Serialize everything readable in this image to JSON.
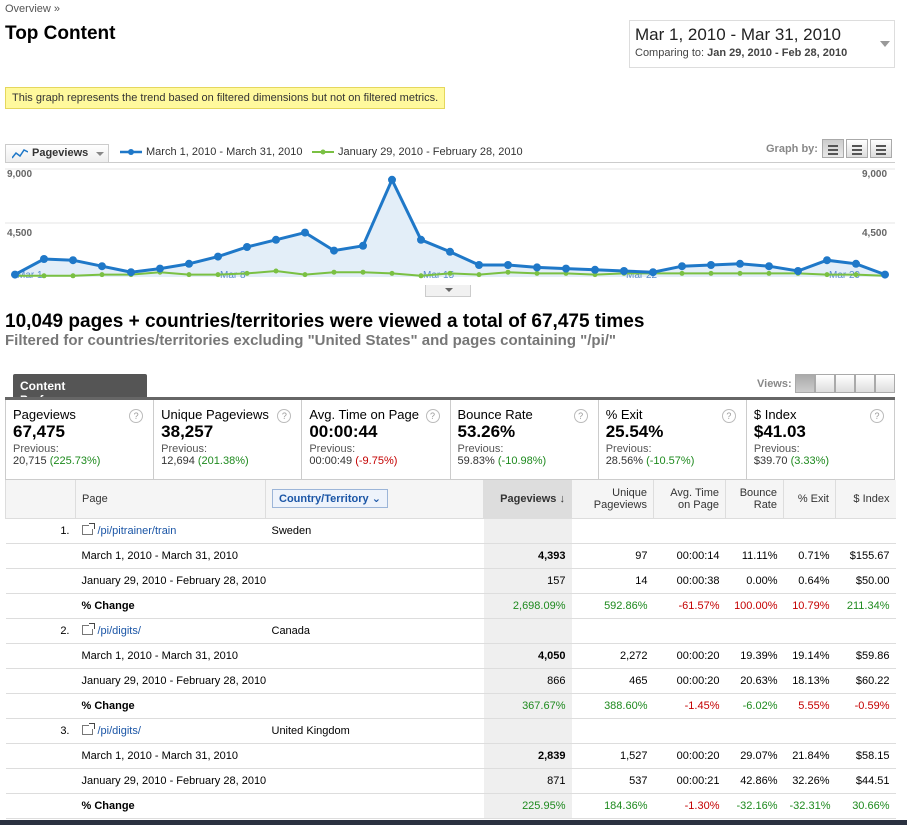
{
  "breadcrumb": "Overview »",
  "title": "Top Content",
  "date_range": {
    "main": "Mar 1, 2010 - Mar 31, 2010",
    "comparing_label": "Comparing to:",
    "comparing_value": "Jan 29, 2010 - Feb 28, 2010"
  },
  "notice": "This graph represents the trend based on filtered dimensions but not on filtered metrics.",
  "graph": {
    "metric": "Pageviews",
    "legend": [
      "March 1, 2010 - March 31, 2010",
      "January 29, 2010 - February 28, 2010"
    ],
    "graph_by_label": "Graph by:",
    "y_ticks": [
      "9,000",
      "4,500"
    ],
    "x_labels": [
      "Mar 1",
      "Mar 8",
      "Mar 15",
      "Mar 22",
      "Mar 29"
    ],
    "colors": {
      "current": "#1f78c8",
      "previous": "#7ac043",
      "fill": "#e3eef8"
    }
  },
  "chart_data": {
    "type": "line",
    "ylim": [
      0,
      9000
    ],
    "x": [
      1,
      2,
      3,
      4,
      5,
      6,
      7,
      8,
      9,
      10,
      11,
      12,
      13,
      14,
      15,
      16,
      17,
      18,
      19,
      20,
      21,
      22,
      23,
      24,
      25,
      26,
      27,
      28,
      29,
      30,
      31
    ],
    "series": [
      {
        "name": "March 1, 2010 - March 31, 2010",
        "values": [
          200,
          1500,
          1400,
          900,
          400,
          700,
          1100,
          1700,
          2500,
          3100,
          3700,
          2200,
          2600,
          8100,
          3100,
          2100,
          1000,
          1000,
          800,
          700,
          600,
          500,
          400,
          900,
          1000,
          1100,
          900,
          500,
          1400,
          1100,
          200
        ]
      },
      {
        "name": "January 29, 2010 - February 28, 2010",
        "values": [
          100,
          100,
          100,
          200,
          200,
          400,
          200,
          200,
          300,
          500,
          200,
          400,
          400,
          300,
          100,
          300,
          200,
          400,
          300,
          300,
          200,
          300,
          300,
          300,
          300,
          300,
          300,
          300,
          200,
          200,
          100
        ]
      }
    ]
  },
  "summary": "10,049 pages + countries/territories were viewed a total of 67,475 times",
  "filter_text": "Filtered for countries/territories excluding \"United States\" and pages containing \"/pi/\"",
  "tab_label": "Content Performance",
  "views_label": "Views:",
  "scorecards": [
    {
      "name": "Pageviews",
      "value": "67,475",
      "prev_label": "Previous:",
      "prev": "20,715",
      "change": "(225.73%)",
      "change_color": "g"
    },
    {
      "name": "Unique Pageviews",
      "value": "38,257",
      "prev_label": "Previous:",
      "prev": "12,694",
      "change": "(201.38%)",
      "change_color": "g"
    },
    {
      "name": "Avg. Time on Page",
      "value": "00:00:44",
      "prev_label": "Previous:",
      "prev": "00:00:49",
      "change": "(-9.75%)",
      "change_color": "r"
    },
    {
      "name": "Bounce Rate",
      "value": "53.26%",
      "prev_label": "Previous:",
      "prev": "59.83%",
      "change": "(-10.98%)",
      "change_color": "g"
    },
    {
      "name": "% Exit",
      "value": "25.54%",
      "prev_label": "Previous:",
      "prev": "28.56%",
      "change": "(-10.57%)",
      "change_color": "g"
    },
    {
      "name": "$ Index",
      "value": "$41.03",
      "prev_label": "Previous:",
      "prev": "$39.70",
      "change": "(3.33%)",
      "change_color": "g"
    }
  ],
  "table": {
    "headers": {
      "page": "Page",
      "country": "Country/Territory",
      "pageviews": "Pageviews",
      "unique": "Unique Pageviews",
      "avg_time": "Avg. Time on Page",
      "bounce": "Bounce Rate",
      "exit": "% Exit",
      "index": "$ Index"
    },
    "groups": [
      {
        "num": "1.",
        "page": "/pi/pitrainer/train",
        "country": "Sweden",
        "rows": [
          {
            "label": "March 1, 2010 - March 31, 2010",
            "cells": [
              "4,393",
              "97",
              "00:00:14",
              "11.11%",
              "0.71%",
              "$155.67"
            ],
            "colors": [
              "",
              "",
              "",
              "",
              "",
              ""
            ]
          },
          {
            "label": "January 29, 2010 - February 28, 2010",
            "cells": [
              "157",
              "14",
              "00:00:38",
              "0.00%",
              "0.64%",
              "$50.00"
            ],
            "colors": [
              "",
              "",
              "",
              "",
              "",
              ""
            ]
          },
          {
            "label": "% Change",
            "cells": [
              "2,698.09%",
              "592.86%",
              "-61.57%",
              "100.00%",
              "10.79%",
              "211.34%"
            ],
            "colors": [
              "g",
              "g",
              "r",
              "r",
              "r",
              "g"
            ]
          }
        ]
      },
      {
        "num": "2.",
        "page": "/pi/digits/",
        "country": "Canada",
        "rows": [
          {
            "label": "March 1, 2010 - March 31, 2010",
            "cells": [
              "4,050",
              "2,272",
              "00:00:20",
              "19.39%",
              "19.14%",
              "$59.86"
            ],
            "colors": [
              "",
              "",
              "",
              "",
              "",
              ""
            ]
          },
          {
            "label": "January 29, 2010 - February 28, 2010",
            "cells": [
              "866",
              "465",
              "00:00:20",
              "20.63%",
              "18.13%",
              "$60.22"
            ],
            "colors": [
              "",
              "",
              "",
              "",
              "",
              ""
            ]
          },
          {
            "label": "% Change",
            "cells": [
              "367.67%",
              "388.60%",
              "-1.45%",
              "-6.02%",
              "5.55%",
              "-0.59%"
            ],
            "colors": [
              "g",
              "g",
              "r",
              "g",
              "r",
              "r"
            ]
          }
        ]
      },
      {
        "num": "3.",
        "page": "/pi/digits/",
        "country": "United Kingdom",
        "rows": [
          {
            "label": "March 1, 2010 - March 31, 2010",
            "cells": [
              "2,839",
              "1,527",
              "00:00:20",
              "29.07%",
              "21.84%",
              "$58.15"
            ],
            "colors": [
              "",
              "",
              "",
              "",
              "",
              ""
            ]
          },
          {
            "label": "January 29, 2010 - February 28, 2010",
            "cells": [
              "871",
              "537",
              "00:00:21",
              "42.86%",
              "32.26%",
              "$44.51"
            ],
            "colors": [
              "",
              "",
              "",
              "",
              "",
              ""
            ]
          },
          {
            "label": "% Change",
            "cells": [
              "225.95%",
              "184.36%",
              "-1.30%",
              "-32.16%",
              "-32.31%",
              "30.66%"
            ],
            "colors": [
              "g",
              "g",
              "r",
              "g",
              "g",
              "g"
            ]
          }
        ]
      }
    ]
  }
}
